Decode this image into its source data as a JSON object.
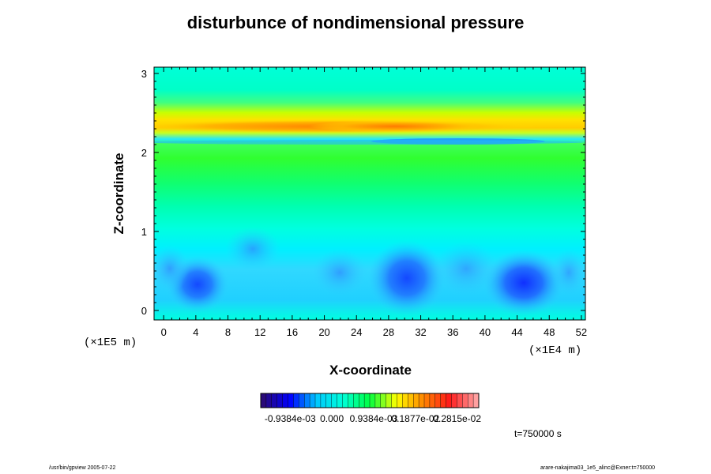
{
  "chart_data": {
    "type": "heatmap",
    "title": "disturbunce of nondimensional pressure",
    "xlabel": "X-coordinate",
    "ylabel": "Z-coordinate",
    "x_scale_note": "(×1E4 m)",
    "y_scale_note": "(×1E5 m)",
    "xlim": [
      -1.2,
      52.5
    ],
    "ylim": [
      -0.12,
      3.08
    ],
    "x_ticks": [
      0,
      4,
      8,
      12,
      16,
      20,
      24,
      28,
      32,
      36,
      40,
      44,
      48,
      52
    ],
    "y_ticks": [
      0,
      1,
      2,
      3
    ],
    "colorbar": {
      "tick_labels": [
        "-0.9384e-03",
        "0.000",
        "0.9384e-03",
        "0.1877e-02",
        "0.2815e-02"
      ],
      "tick_values": [
        -0.0009384,
        0.0,
        0.0009384,
        0.001877,
        0.002815
      ],
      "range": [
        -0.0016,
        0.0033
      ],
      "colormap": [
        "#2a0a78",
        "#0000ff",
        "#00c8ff",
        "#00ffd8",
        "#00ff40",
        "#ffff00",
        "#ff8800",
        "#ff1a1a",
        "#ffa0a0"
      ]
    },
    "approx_field_description_rows": [
      {
        "z": 2.95,
        "value": 0.0
      },
      {
        "z": 2.55,
        "value": 0.0011
      },
      {
        "z": 2.38,
        "value": 0.0021
      },
      {
        "z": 2.25,
        "value": 0.0026
      },
      {
        "z": 2.1,
        "value": -0.0005
      },
      {
        "z": 1.9,
        "value": 0.0009
      },
      {
        "z": 1.5,
        "value": 0.0004
      },
      {
        "z": 1.0,
        "value": 0.0
      },
      {
        "z": 0.4,
        "value": -0.0006
      },
      {
        "z": 0.0,
        "value": 0.0
      }
    ],
    "features": [
      {
        "x": 44.5,
        "z": 0.35,
        "value": -0.0013
      },
      {
        "x": 31.0,
        "z": 0.3,
        "value": -0.0009
      },
      {
        "x": 4.0,
        "z": 0.35,
        "value": -0.0009
      },
      {
        "x": 29.0,
        "z": 2.32,
        "value": 0.0028
      },
      {
        "x": 35.0,
        "z": 2.13,
        "value": -0.0008
      }
    ]
  },
  "time_label": "t=750000 s",
  "footer_left": "/usr/bin/gpview 2005-07-22",
  "footer_right": "arare-nakajima03_1e5_alinc@Exner:t=750000"
}
